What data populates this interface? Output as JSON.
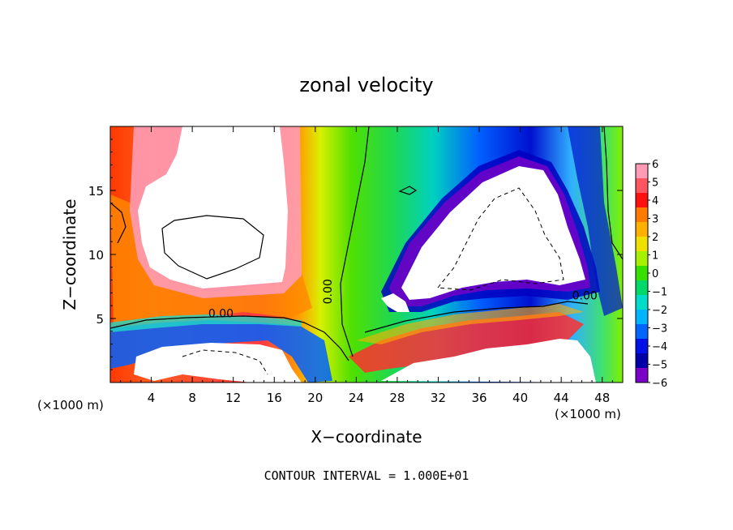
{
  "chart_data": {
    "type": "heatmap",
    "title": "zonal velocity",
    "xlabel": "X−coordinate",
    "ylabel": "Z−coordinate",
    "x_unit_left": "(×1000 m)",
    "x_unit_right": "(×1000 m)",
    "footer": "CONTOUR INTERVAL = 1.000E+01",
    "xlim": [
      0,
      50
    ],
    "ylim": [
      0,
      20
    ],
    "x_ticks": [
      4,
      8,
      12,
      16,
      20,
      24,
      28,
      32,
      36,
      40,
      44,
      48
    ],
    "x_tick_labels": [
      "4",
      "8",
      "12",
      "16",
      "20",
      "24",
      "28",
      "32",
      "36",
      "40",
      "44",
      "48"
    ],
    "y_ticks": [
      5,
      10,
      15
    ],
    "y_tick_labels": [
      "5",
      "10",
      "15"
    ],
    "contour_labels": [
      {
        "text": "0.00",
        "x": 10.8,
        "z": 5.1
      },
      {
        "text": "0.00",
        "x": 21.6,
        "z": 7.1
      },
      {
        "text": "0.00",
        "x": 46.3,
        "z": 6.5
      }
    ],
    "colorbar": {
      "min": -6,
      "max": 6,
      "labels": [
        "6",
        "5",
        "4",
        "3",
        "2",
        "1",
        "0",
        "−1",
        "−2",
        "−3",
        "−4",
        "−5",
        "−6"
      ],
      "colors": [
        "#ff9bb4",
        "#ff5560",
        "#ff1010",
        "#ff7a00",
        "#ffb000",
        "#f0e000",
        "#a6f000",
        "#38e000",
        "#00d86a",
        "#00dcc8",
        "#00b4ff",
        "#0066ff",
        "#0010e6",
        "#0000a8",
        "#7b00c8"
      ]
    }
  }
}
